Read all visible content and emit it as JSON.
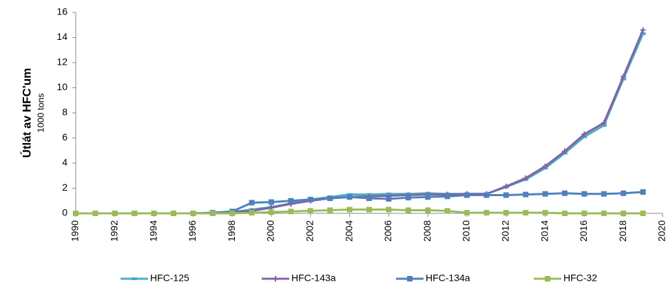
{
  "chart_data": {
    "type": "line",
    "ylabel": "Útlát av HFC'um",
    "ylabel_sub": "1000 tons",
    "x": [
      1990,
      1991,
      1992,
      1993,
      1994,
      1995,
      1996,
      1997,
      1998,
      1999,
      2000,
      2001,
      2002,
      2003,
      2004,
      2005,
      2006,
      2007,
      2008,
      2009,
      2010,
      2011,
      2012,
      2013,
      2014,
      2015,
      2016,
      2017,
      2018,
      2019
    ],
    "series": [
      {
        "name": "HFC-125",
        "color": "#4bacc6",
        "marker": "dash",
        "values": [
          0,
          0,
          0,
          0,
          0,
          0,
          0,
          0.05,
          0.1,
          0.3,
          0.5,
          0.8,
          1.1,
          1.3,
          1.5,
          1.5,
          1.55,
          1.55,
          1.6,
          1.55,
          1.55,
          1.55,
          2.1,
          2.7,
          3.6,
          4.8,
          6.1,
          7.0,
          10.7,
          14.3
        ]
      },
      {
        "name": "HFC-143a",
        "color": "#8064a2",
        "marker": "plus",
        "values": [
          0,
          0,
          0,
          0,
          0,
          0,
          0,
          0.05,
          0.1,
          0.2,
          0.45,
          0.75,
          1.0,
          1.2,
          1.3,
          1.35,
          1.4,
          1.45,
          1.5,
          1.5,
          1.55,
          1.55,
          2.15,
          2.8,
          3.75,
          4.95,
          6.3,
          7.2,
          10.9,
          14.6
        ]
      },
      {
        "name": "HFC-134a",
        "color": "#4f81bd",
        "marker": "square",
        "values": [
          0,
          0,
          0,
          0,
          0,
          0,
          0,
          0.05,
          0.15,
          0.85,
          0.9,
          1.0,
          1.1,
          1.2,
          1.3,
          1.2,
          1.15,
          1.25,
          1.3,
          1.35,
          1.45,
          1.45,
          1.45,
          1.5,
          1.55,
          1.6,
          1.55,
          1.55,
          1.6,
          1.7
        ]
      },
      {
        "name": "HFC-32",
        "color": "#9bbb59",
        "marker": "square",
        "values": [
          0,
          0,
          0,
          0,
          0,
          0,
          0,
          0,
          0,
          0.05,
          0.1,
          0.15,
          0.2,
          0.25,
          0.3,
          0.3,
          0.3,
          0.25,
          0.25,
          0.2,
          0.05,
          0.05,
          0.05,
          0.05,
          0.05,
          0,
          0,
          0,
          0,
          0
        ]
      }
    ],
    "xlim": [
      1990,
      2020
    ],
    "xticks": [
      1990,
      1992,
      1994,
      1996,
      1998,
      2000,
      2002,
      2004,
      2006,
      2008,
      2010,
      2012,
      2014,
      2016,
      2018,
      2020
    ],
    "ylim": [
      0,
      16
    ],
    "yticks": [
      0,
      2,
      4,
      6,
      8,
      10,
      12,
      14,
      16
    ],
    "grid": false,
    "legend": "bottom"
  }
}
